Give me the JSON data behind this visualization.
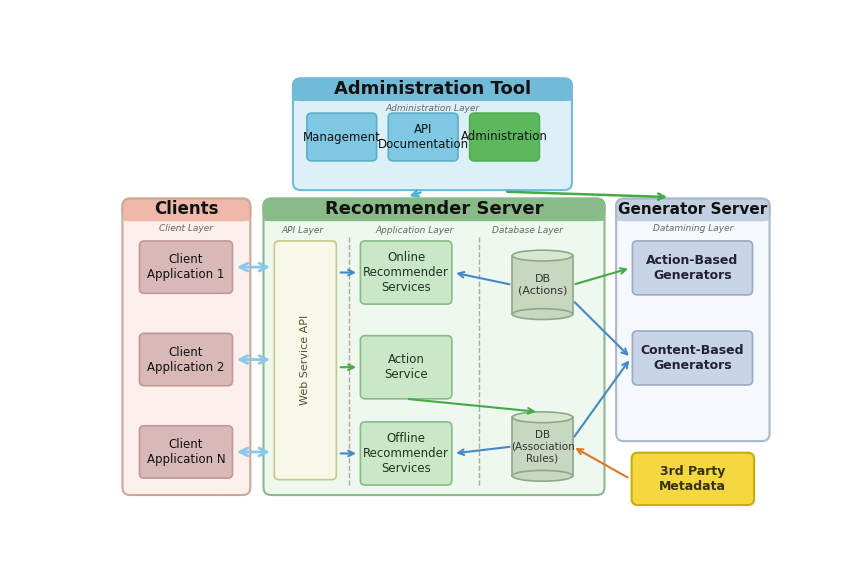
{
  "bg_color": "#ffffff",
  "admin_tool": {
    "title": "Administration Tool",
    "subtitle": "Administration Layer",
    "fill": "#ddf0f8",
    "edge": "#70bcd8",
    "title_bg": "#70bcd8",
    "children": [
      {
        "label": "Management",
        "fill": "#7ec8e3",
        "edge": "#5aafc7"
      },
      {
        "label": "API\nDocumentation",
        "fill": "#7ec8e3",
        "edge": "#5aafc7"
      },
      {
        "label": "Administration",
        "fill": "#5cb85c",
        "edge": "#4cae4c"
      }
    ]
  },
  "clients": {
    "title": "Clients",
    "subtitle": "Client Layer",
    "fill": "#fdf0ec",
    "edge": "#cca898",
    "title_bg": "#f0b8a8",
    "children": [
      {
        "label": "Client\nApplication 1",
        "fill": "#d9b8b8",
        "edge": "#c09898"
      },
      {
        "label": "Client\nApplication 2",
        "fill": "#d9b8b8",
        "edge": "#c09898"
      },
      {
        "label": "Client\nApplication N",
        "fill": "#d9b8b8",
        "edge": "#c09898"
      }
    ]
  },
  "recommender": {
    "title": "Recommender Server",
    "subtitle_api": "API Layer",
    "subtitle_app": "Application Layer",
    "subtitle_db": "Database Layer",
    "fill": "#eef8ee",
    "edge": "#88bb88",
    "title_bg": "#88bb88"
  },
  "generator": {
    "title": "Generator Server",
    "subtitle": "Datamining Layer",
    "fill": "#f5f8fc",
    "edge": "#aab8cc",
    "title_bg": "#c0d0e0",
    "children": [
      {
        "label": "Action-Based\nGenerators",
        "fill": "#c8d4e8",
        "edge": "#9aaac0"
      },
      {
        "label": "Content-Based\nGenerators",
        "fill": "#c8d4e8",
        "edge": "#9aaac0"
      }
    ]
  },
  "web_service": {
    "label": "Web Service API",
    "fill": "#f8f8e8",
    "edge": "#c8c888"
  },
  "app_services": [
    {
      "label": "Online\nRecommender\nServices",
      "fill": "#c8e8c8",
      "edge": "#88bb88"
    },
    {
      "label": "Action\nService",
      "fill": "#c8e8c8",
      "edge": "#88bb88"
    },
    {
      "label": "Offline\nRecommender\nServices",
      "fill": "#c8e8c8",
      "edge": "#88bb88"
    }
  ],
  "third_party": {
    "label": "3rd Party\nMetadata",
    "fill": "#f5d840",
    "edge": "#c8b000"
  },
  "db_fill": "#c8d8c0",
  "db_edge": "#8aaa88"
}
